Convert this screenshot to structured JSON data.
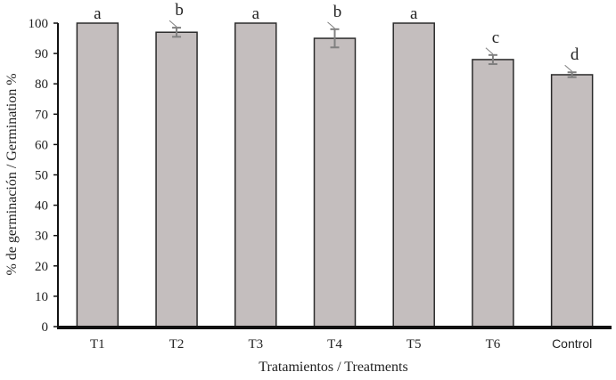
{
  "chart_data": {
    "type": "bar",
    "title": "",
    "xlabel": "Tratamientos / Treatments",
    "ylabel": "% de germinación / Germination %",
    "ylim": [
      0,
      100
    ],
    "yticks": [
      "0",
      "10",
      "20",
      "30",
      "40",
      "50",
      "60",
      "70",
      "80",
      "90",
      "100"
    ],
    "grid": false,
    "legend": "none",
    "categories": [
      "T1",
      "T2",
      "T3",
      "T4",
      "T5",
      "T6",
      "Control"
    ],
    "values": [
      100,
      97,
      100,
      95,
      100,
      88,
      83
    ],
    "errors": [
      0,
      1.5,
      0,
      3,
      0,
      1.5,
      0.8
    ],
    "significance_letters": [
      "a",
      "b",
      "a",
      "b",
      "a",
      "c",
      "d"
    ],
    "colors": {
      "bar_fill": "#c4bebe",
      "bar_stroke": "#2b2b2b",
      "error_bar": "#808080",
      "axis": "#111111"
    }
  }
}
